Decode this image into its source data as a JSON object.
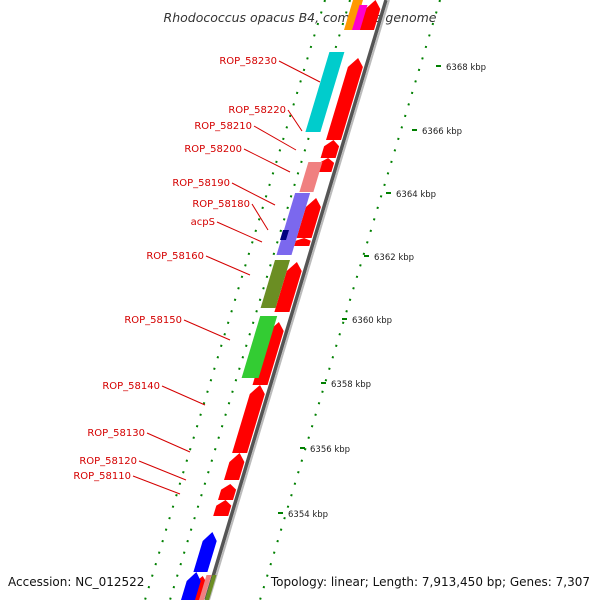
{
  "title": "Rhodococcus opacus B4, complete genome",
  "accession": "Accession: NC_012522",
  "topology": "Topology: linear; Length: 7,913,450 bp; Genes: 7,307",
  "scale": {
    "unit": "kbp",
    "ticks": [
      "6368 kbp",
      "6366 kbp",
      "6364 kbp",
      "6362 kbp",
      "6360 kbp",
      "6358 kbp",
      "6356 kbp",
      "6354 kbp"
    ]
  },
  "gene_labels": [
    "ROP_58230",
    "ROP_58220",
    "ROP_58210",
    "ROP_58200",
    "ROP_58190",
    "ROP_58180",
    "acpS",
    "ROP_58160",
    "ROP_58150",
    "ROP_58140",
    "ROP_58130",
    "ROP_58120",
    "ROP_58110"
  ],
  "colors": {
    "gene_red": "#ff0000",
    "cyan": "#00cccc",
    "salmon": "#f08080",
    "slate_blue": "#7b68ee",
    "navy": "#000080",
    "olive": "#6b8e23",
    "green": "#33cc33",
    "blue": "#0000ff",
    "orange": "#ff9900",
    "magenta": "#ff00cc",
    "label_red": "#d40000",
    "dot_green": "#008000"
  }
}
